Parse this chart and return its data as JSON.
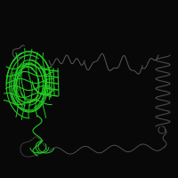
{
  "background_color": "#080808",
  "figure_size": [
    2.0,
    2.0
  ],
  "dpi": 100,
  "green_color": "#22cc22",
  "chain_color": "#5a5a5a",
  "chain_color2": "#444444",
  "helix_color": "#4a4a4a",
  "seed": 42,
  "xlim": [
    0,
    200
  ],
  "ylim": [
    0,
    200
  ]
}
